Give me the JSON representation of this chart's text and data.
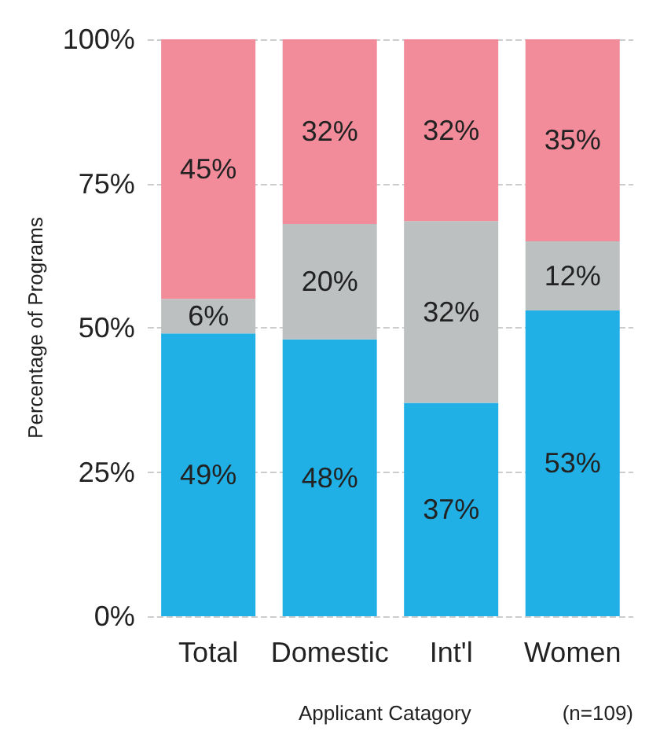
{
  "chart_data": {
    "type": "bar",
    "stacked": true,
    "xlabel": "Applicant Catagory",
    "ylabel": "Percentage of Programs",
    "annotations": [
      "(n=109)"
    ],
    "categories": [
      "Total",
      "Domestic",
      "Int'l",
      "Women"
    ],
    "series": [
      {
        "color": "#21b0e6",
        "values": [
          49,
          48,
          37,
          53
        ],
        "value_labels": [
          "49%",
          "48%",
          "37%",
          "53%"
        ]
      },
      {
        "color": "#bcc0c1",
        "values": [
          6,
          20,
          31.5,
          12
        ],
        "value_labels": [
          "6%",
          "20%",
          "32%",
          "12%"
        ]
      },
      {
        "color": "#f28b9a",
        "values": [
          45,
          32,
          31.5,
          35
        ],
        "value_labels": [
          "45%",
          "32%",
          "32%",
          "35%"
        ]
      }
    ],
    "ylim": [
      0,
      100
    ],
    "yticks": [
      {
        "value": 0,
        "label": "0%"
      },
      {
        "value": 25,
        "label": "25%"
      },
      {
        "value": 50,
        "label": "50%"
      },
      {
        "value": 75,
        "label": "75%"
      },
      {
        "value": 100,
        "label": "100%"
      }
    ],
    "grid": "y"
  }
}
